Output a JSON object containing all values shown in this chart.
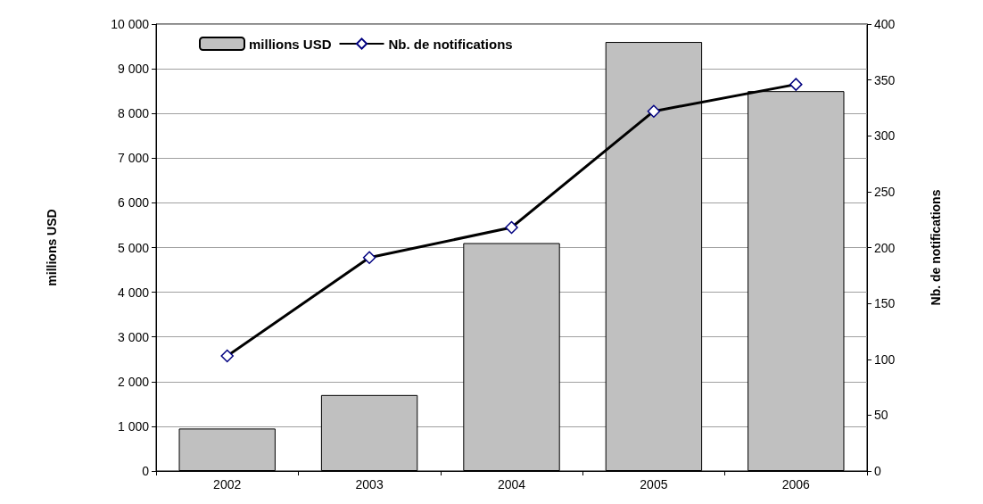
{
  "chart_data": {
    "type": "bar",
    "ylabel": "millions USD",
    "y2label": "Nb. de notifications",
    "categories": [
      "2002",
      "2003",
      "2004",
      "2005",
      "2006"
    ],
    "series": [
      {
        "name": "millions USD",
        "color": "#c0c0c0",
        "values": [
          950,
          1700,
          5100,
          9600,
          8500
        ]
      },
      {
        "name": "Nb. de notifications",
        "type": "line",
        "axis": "y2",
        "color": "#000000",
        "marker": "diamond",
        "values": [
          103,
          191,
          218,
          322,
          346
        ]
      }
    ],
    "ylim": [
      0,
      10000
    ],
    "yticks": [
      0,
      {
        "value": 1000,
        "label": "1 000"
      },
      {
        "value": 2000,
        "label": "2 000"
      },
      {
        "value": 3000,
        "label": "3 000"
      },
      {
        "value": 4000,
        "label": "4 000"
      },
      {
        "value": 5000,
        "label": "5 000"
      },
      {
        "value": 6000,
        "label": "6 000"
      },
      {
        "value": 7000,
        "label": "7 000"
      },
      {
        "value": 8000,
        "label": "8 000"
      },
      {
        "value": 9000,
        "label": "9 000"
      },
      {
        "value": 10000,
        "label": "10 000"
      }
    ],
    "y2lim": [
      0,
      400
    ],
    "y2ticks": [
      0,
      50,
      100,
      150,
      200,
      250,
      300,
      350,
      400
    ],
    "grid": "y",
    "legend": "top left"
  }
}
